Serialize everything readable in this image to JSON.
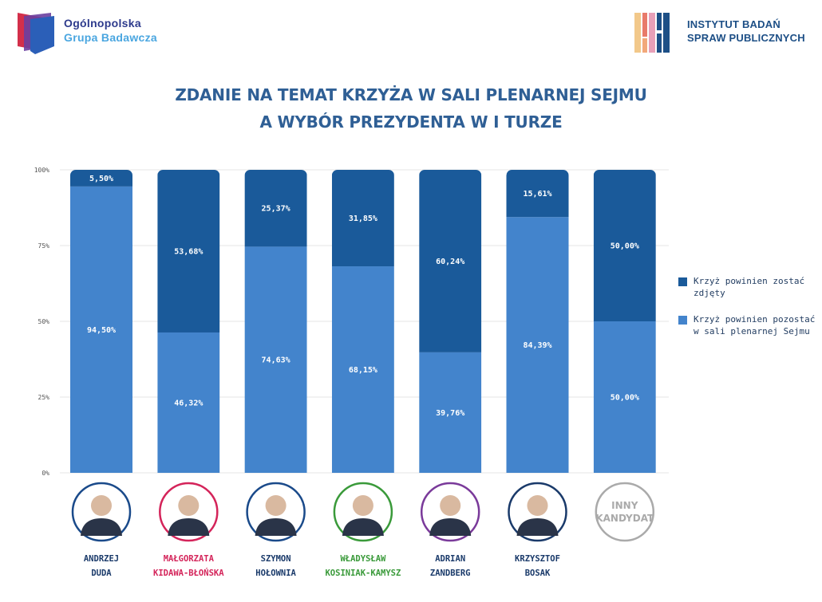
{
  "header": {
    "left_logo": {
      "line1": "Ogólnopolska",
      "line2": "Grupa Badawcza",
      "icon": "shield-logo-icon"
    },
    "right_logo": {
      "line1": "INSTYTUT BADAŃ",
      "line2": "SPRAW PUBLICZNYCH",
      "icon": "bars-logo-icon"
    }
  },
  "title_line1": "ZDANIE NA TEMAT KRZYŻA W SALI PLENARNEJ SEJMU",
  "title_line2": "A WYBÓR PREZYDENTA W I TURZE",
  "colors": {
    "dark": "#1a5a9a",
    "light": "#4384cc",
    "grid": "#e6e6e6",
    "label_bg": "#ffffff"
  },
  "chart_data": {
    "type": "bar",
    "stacked": true,
    "title": "ZDANIE NA TEMAT KRZYŻA W SALI PLENARNEJ SEJMU A WYBÓR PREZYDENTA W I TURZE",
    "ylim": [
      0,
      100
    ],
    "yticks": [
      "0%",
      "25%",
      "50%",
      "75%",
      "100%"
    ],
    "categories": [
      {
        "line1": "ANDRZEJ",
        "line2": "DUDA",
        "color": "#1a3a6a"
      },
      {
        "line1": "MAŁGORZATA",
        "line2": "KIDAWA-BŁOŃSKA",
        "color": "#d4245a"
      },
      {
        "line1": "SZYMON",
        "line2": "HOŁOWNIA",
        "color": "#1a3a6a"
      },
      {
        "line1": "WŁADYSŁAW",
        "line2": "KOSINIAK-KAMYSZ",
        "color": "#3a9a3a"
      },
      {
        "line1": "ADRIAN",
        "line2": "ZANDBERG",
        "color": "#1a3a6a"
      },
      {
        "line1": "KRZYSZTOF",
        "line2": "BOSAK",
        "color": "#1a3a6a"
      },
      {
        "line1": "",
        "line2": "",
        "color": "#1a3a6a"
      }
    ],
    "avatars": [
      {
        "ring": "#1a4a8a",
        "text": ""
      },
      {
        "ring": "#d4245a",
        "text": ""
      },
      {
        "ring": "#1a4a8a",
        "text": ""
      },
      {
        "ring": "#3a9a3a",
        "text": ""
      },
      {
        "ring": "#7a3a9a",
        "text": ""
      },
      {
        "ring": "#1a3a6a",
        "text": ""
      },
      {
        "ring": "#aaaaaa",
        "text": "INNY KANDYDAT"
      }
    ],
    "series": [
      {
        "name": "Krzyż powinien pozostać w sali plenarnej Sejmu",
        "values": [
          94.5,
          46.32,
          74.63,
          68.15,
          39.76,
          84.39,
          50.0
        ],
        "labels": [
          "94,50%",
          "46,32%",
          "74,63%",
          "68,15%",
          "39,76%",
          "84,39%",
          "50,00%"
        ]
      },
      {
        "name": "Krzyż powinien zostać zdjęty",
        "values": [
          5.5,
          53.68,
          25.37,
          31.85,
          60.24,
          15.61,
          50.0
        ],
        "labels": [
          "5,50%",
          "53,68%",
          "25,37%",
          "31,85%",
          "60,24%",
          "15,61%",
          "50,00%"
        ]
      }
    ],
    "legend": [
      {
        "line1": "Krzyż powinien zostać zdjęty",
        "line2": ""
      },
      {
        "line1": "Krzyż powinien pozostać",
        "line2": "w sali plenarnej Sejmu"
      }
    ]
  }
}
